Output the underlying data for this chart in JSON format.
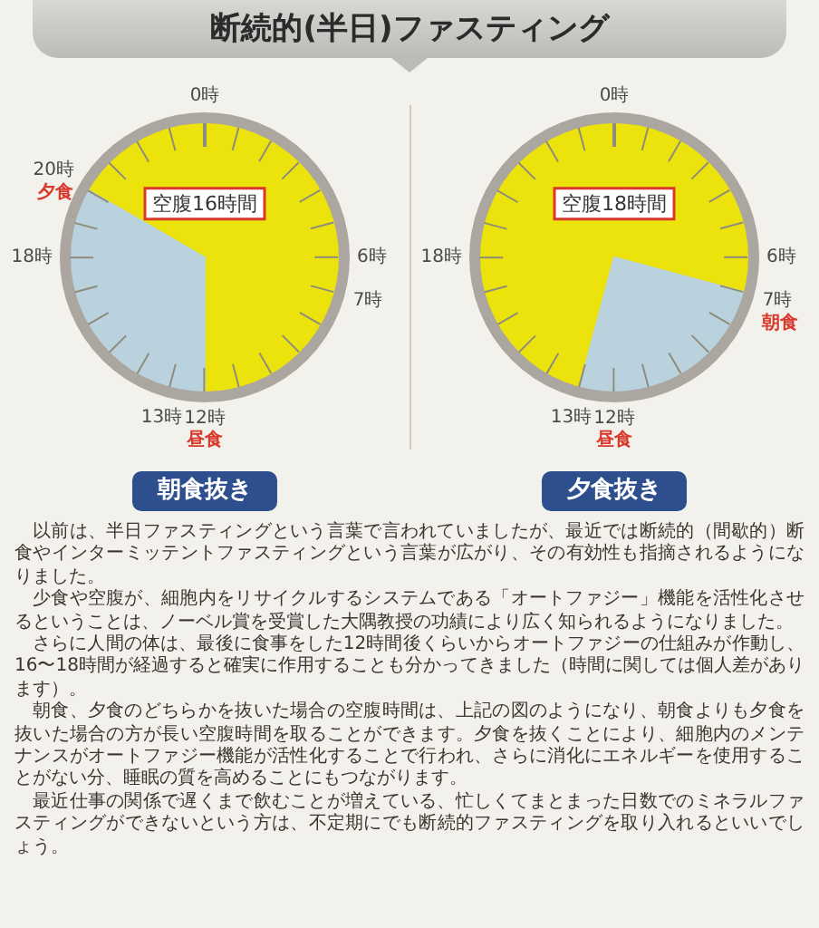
{
  "chart_data": [
    {
      "type": "other",
      "title": "断続的(半日)ファスティング"
    },
    {
      "type": "pie",
      "title": "朝食抜き",
      "categories": [
        null,
        null
      ],
      "values": [
        16,
        8
      ],
      "colors": [
        "#ede30c",
        "#b9d2de"
      ],
      "value_labels": [
        "空腹16時間",
        null
      ],
      "annotations": [
        "0時",
        "6時",
        "7時",
        "12時",
        "昼食",
        "13時",
        "18時",
        "20時",
        "夕食"
      ]
    },
    {
      "type": "pie",
      "title": "夕食抜き",
      "categories": [
        null,
        null
      ],
      "values": [
        18,
        6
      ],
      "colors": [
        "#ede30c",
        "#b9d2de"
      ],
      "value_labels": [
        "空腹18時間",
        null
      ],
      "annotations": [
        "0時",
        "6時",
        "7時",
        "朝食",
        "12時",
        "昼食",
        "13時",
        "18時"
      ]
    },
    {
      "type": "other",
      "annotations": [
        "以前は、半日ファスティングという言葉で言われていましたが、最近では断続的（間歇的）断食やインターミッテントファスティングという言葉が広がり、その有効性も指摘されるようになりました。",
        "少食や空腹が、細胞内をリサイクルするシステムである「オートファジー」機能を活性化させるということは、ノーベル賞を受賞した大隅教授の功績により広く知られるようになりました。",
        "さらに人間の体は、最後に食事をした12時間後くらいからオートファジーの仕組みが作動し、16〜18時間が経過すると確実に作用することも分かってきました（時間に関しては個人差があります）。",
        "朝食、夕食のどちらかを抜いた場合の空腹時間は、上記の図のようになり、朝食よりも夕食を抜いた場合の方が長い空腹時間を取ることができます。夕食を抜くことにより、細胞内のメンテナンスがオートファジー機能が活性化することで行われ、さらに消化にエネルギーを使用することがない分、睡眠の質を高めることにもつながります。",
        "最近仕事の関係で遅くまで飲むことが増えている、忙しくてまとまった日数でのミネラルファスティングができないという方は、不定期にでも断続的ファスティングを取り入れるといいでしょう。"
      ]
    }
  ]
}
